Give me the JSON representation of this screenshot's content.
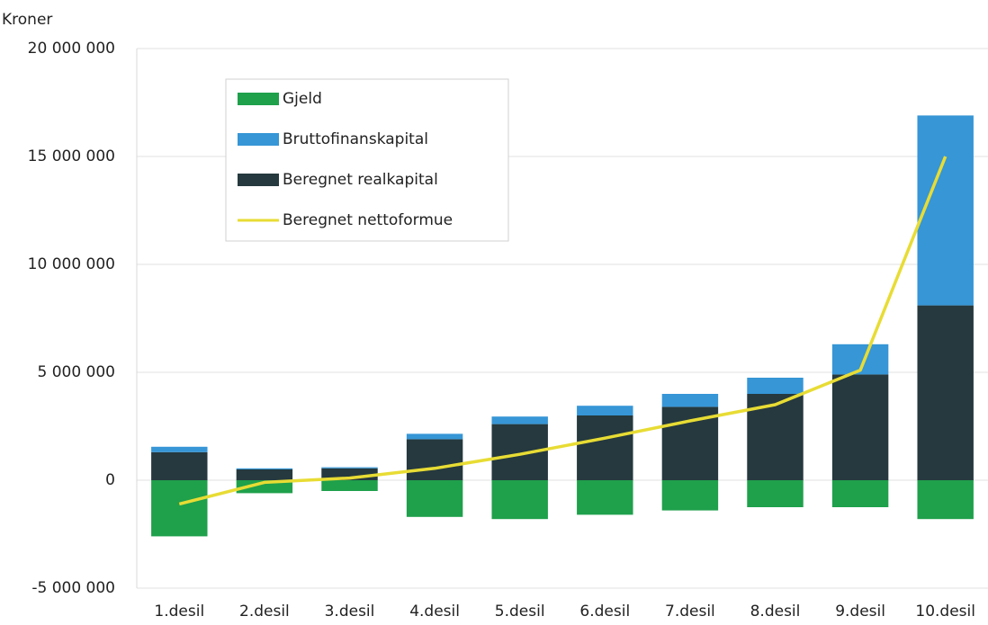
{
  "chart_data": {
    "type": "bar",
    "stacked": true,
    "y_label": "Kroner",
    "categories": [
      "1.desil",
      "2.desil",
      "3.desil",
      "4.desil",
      "5.desil",
      "6.desil",
      "7.desil",
      "8.desil",
      "9.desil",
      "10.desil"
    ],
    "series": [
      {
        "name": "Gjeld",
        "type": "bar",
        "color": "#1fa04b",
        "values": [
          -2600000,
          -600000,
          -500000,
          -1700000,
          -1800000,
          -1600000,
          -1400000,
          -1250000,
          -1250000,
          -1800000
        ]
      },
      {
        "name": "Bruttofinanskapital",
        "type": "bar",
        "color": "#3696d6",
        "values": [
          250000,
          50000,
          50000,
          250000,
          350000,
          450000,
          600000,
          750000,
          1400000,
          8800000
        ]
      },
      {
        "name": "Beregnet realkapital",
        "type": "bar",
        "color": "#25393e",
        "values": [
          1300000,
          500000,
          550000,
          1900000,
          2600000,
          3000000,
          3400000,
          4000000,
          4900000,
          8100000
        ]
      },
      {
        "name": "Beregnet nettoformue",
        "type": "line",
        "color": "#e8dc34",
        "values": [
          -1100000,
          -100000,
          100000,
          550000,
          1200000,
          1950000,
          2750000,
          3500000,
          5100000,
          15000000
        ]
      }
    ],
    "ylim": [
      -5000000,
      20000000
    ],
    "yticks": [
      {
        "value": -5000000,
        "label": "-5 000 000"
      },
      0,
      {
        "value": 5000000,
        "label": "5 000 000"
      },
      {
        "value": 10000000,
        "label": "10 000 000"
      },
      {
        "value": 15000000,
        "label": "15 000 000"
      },
      {
        "value": 20000000,
        "label": "20 000 000"
      }
    ],
    "grid": true
  }
}
